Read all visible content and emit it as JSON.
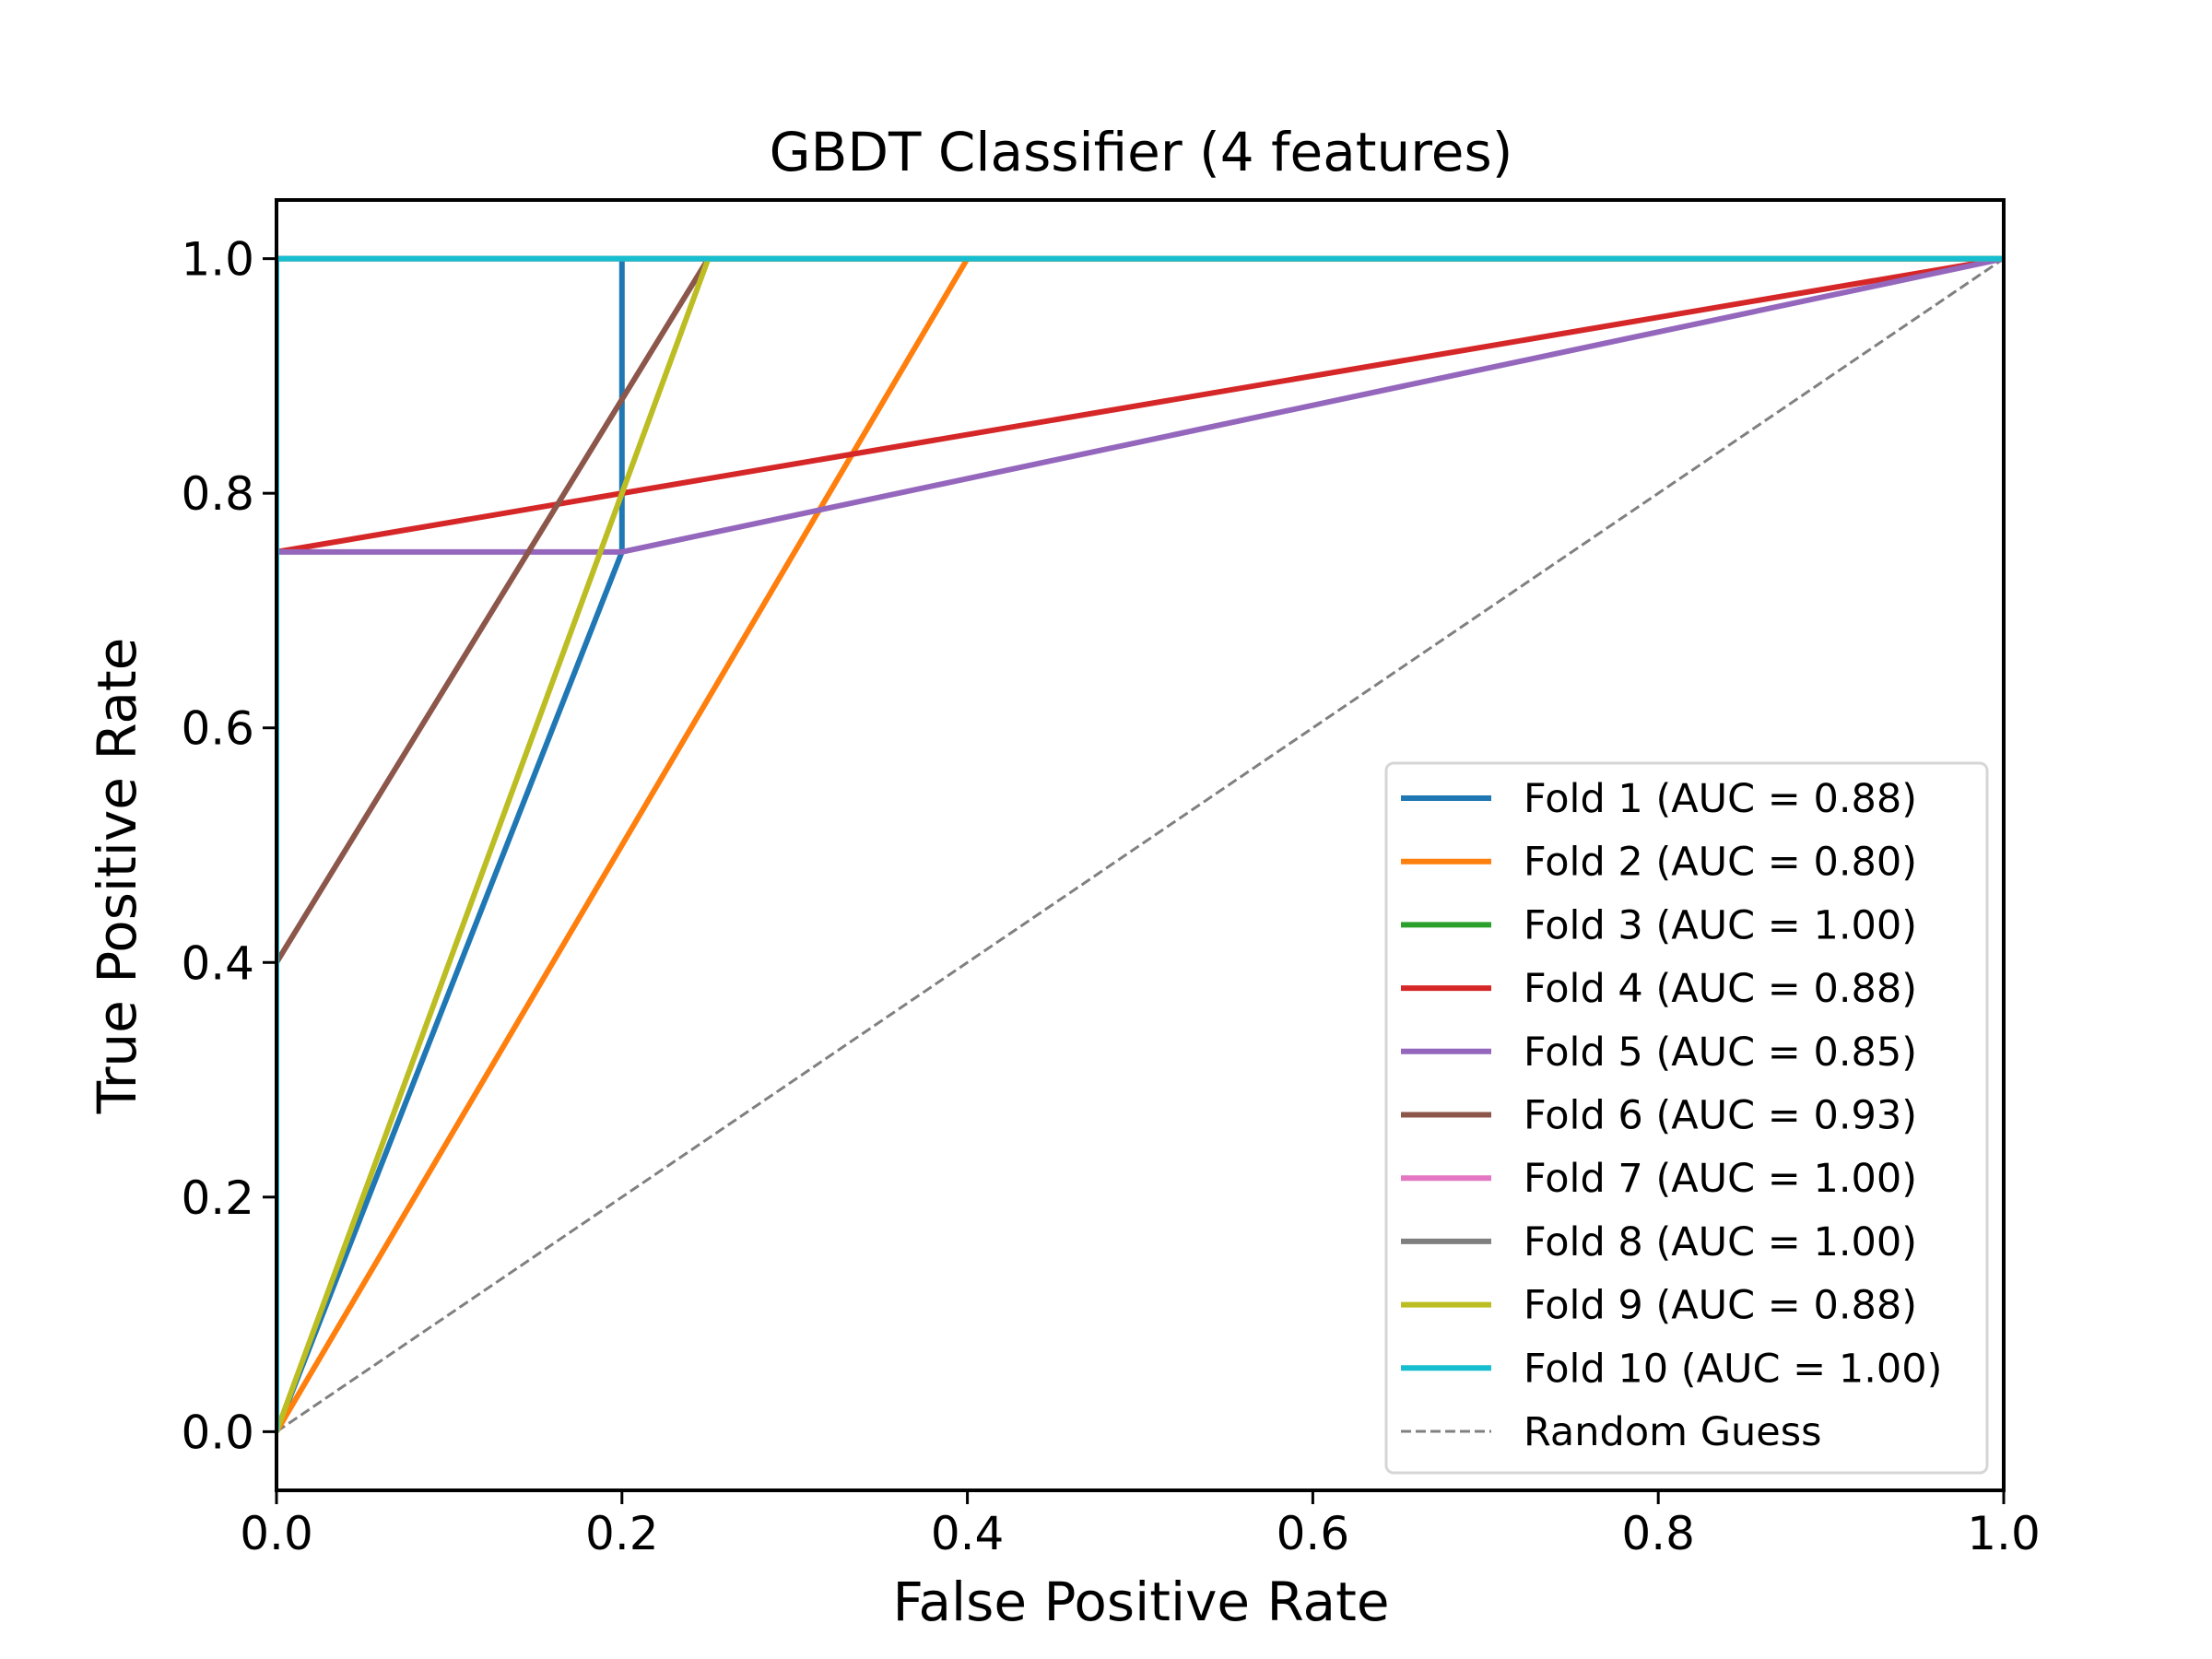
{
  "chart_data": {
    "type": "line",
    "title": "GBDT Classifier (4 features)",
    "xlabel": "False Positive Rate",
    "ylabel": "True Positive Rate",
    "xlim": [
      0.0,
      1.0
    ],
    "ylim": [
      -0.05,
      1.05
    ],
    "xticks": [
      0.0,
      0.2,
      0.4,
      0.6,
      0.8,
      1.0
    ],
    "yticks": [
      0.0,
      0.2,
      0.4,
      0.6,
      0.8,
      1.0
    ],
    "xtick_labels": [
      "0.0",
      "0.2",
      "0.4",
      "0.6",
      "0.8",
      "1.0"
    ],
    "ytick_labels": [
      "0.0",
      "0.2",
      "0.4",
      "0.6",
      "0.8",
      "1.0"
    ],
    "grid": false,
    "legend_position": "lower-right",
    "series": [
      {
        "name": "Fold 1 (AUC = 0.88)",
        "color": "#1f77b4",
        "x": [
          0.0,
          0.2,
          0.2,
          1.0
        ],
        "y": [
          0.0,
          0.75,
          1.0,
          1.0
        ]
      },
      {
        "name": "Fold 2 (AUC = 0.80)",
        "color": "#ff7f0e",
        "x": [
          0.0,
          0.4,
          1.0
        ],
        "y": [
          0.0,
          1.0,
          1.0
        ]
      },
      {
        "name": "Fold 3 (AUC = 1.00)",
        "color": "#2ca02c",
        "x": [
          0.0,
          0.0,
          1.0
        ],
        "y": [
          0.0,
          1.0,
          1.0
        ]
      },
      {
        "name": "Fold 4 (AUC = 0.88)",
        "color": "#d62728",
        "x": [
          0.0,
          0.0,
          1.0
        ],
        "y": [
          0.0,
          0.75,
          1.0
        ]
      },
      {
        "name": "Fold 5 (AUC = 0.85)",
        "color": "#9467bd",
        "x": [
          0.0,
          0.0,
          0.2,
          1.0
        ],
        "y": [
          0.0,
          0.75,
          0.75,
          1.0
        ]
      },
      {
        "name": "Fold 6 (AUC = 0.93)",
        "color": "#8c564b",
        "x": [
          0.0,
          0.0,
          0.25,
          1.0
        ],
        "y": [
          0.0,
          0.4,
          1.0,
          1.0
        ]
      },
      {
        "name": "Fold 7 (AUC = 1.00)",
        "color": "#e377c2",
        "x": [
          0.0,
          0.0,
          1.0
        ],
        "y": [
          0.0,
          1.0,
          1.0
        ]
      },
      {
        "name": "Fold 8 (AUC = 1.00)",
        "color": "#7f7f7f",
        "x": [
          0.0,
          0.0,
          1.0
        ],
        "y": [
          0.0,
          1.0,
          1.0
        ]
      },
      {
        "name": "Fold 9 (AUC = 0.88)",
        "color": "#bcbd22",
        "x": [
          0.0,
          0.25,
          1.0
        ],
        "y": [
          0.0,
          1.0,
          1.0
        ]
      },
      {
        "name": "Fold 10 (AUC = 1.00)",
        "color": "#17becf",
        "x": [
          0.0,
          0.0,
          1.0
        ],
        "y": [
          0.0,
          1.0,
          1.0
        ]
      }
    ],
    "reference_line": {
      "name": "Random Guess",
      "color": "#808080",
      "style": "dashed",
      "x": [
        0.0,
        1.0
      ],
      "y": [
        0.0,
        1.0
      ]
    }
  }
}
